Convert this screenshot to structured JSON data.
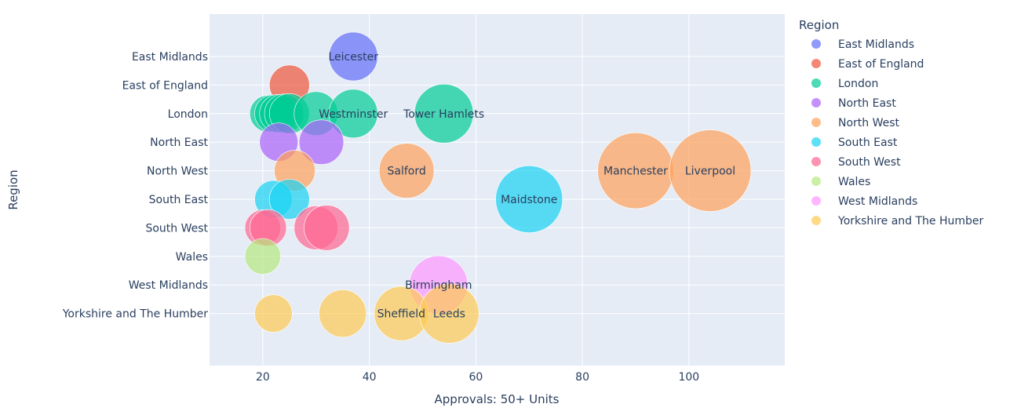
{
  "chart_data": {
    "type": "scatter",
    "xlabel": "Approvals: 50+ Units",
    "ylabel": "Region",
    "xlim": [
      10,
      118
    ],
    "x_ticks": [
      20,
      40,
      60,
      80,
      100
    ],
    "legend_title": "Region",
    "legend_position": "right",
    "grid": true,
    "categories": [
      "East Midlands",
      "East of England",
      "London",
      "North East",
      "North West",
      "South East",
      "South West",
      "Wales",
      "West Midlands",
      "Yorkshire and The Humber"
    ],
    "colors": {
      "East Midlands": "#636efa",
      "East of England": "#EF553B",
      "London": "#00cc96",
      "North East": "#ab63fa",
      "North West": "#FFA15A",
      "South East": "#19d3f3",
      "South West": "#FF6692",
      "Wales": "#B6E880",
      "West Midlands": "#FF97FF",
      "Yorkshire and The Humber": "#FECB52"
    },
    "series": [
      {
        "name": "East Midlands",
        "points": [
          {
            "x": 37,
            "size": 37,
            "label": "Leicester"
          }
        ]
      },
      {
        "name": "East of England",
        "points": [
          {
            "x": 25,
            "size": 25,
            "label": ""
          }
        ]
      },
      {
        "name": "London",
        "points": [
          {
            "x": 21,
            "size": 21,
            "label": ""
          },
          {
            "x": 22,
            "size": 22,
            "label": ""
          },
          {
            "x": 23,
            "size": 23,
            "label": ""
          },
          {
            "x": 24,
            "size": 24,
            "label": ""
          },
          {
            "x": 25,
            "size": 25,
            "label": ""
          },
          {
            "x": 30,
            "size": 30,
            "label": ""
          },
          {
            "x": 37,
            "size": 37,
            "label": "Westminster"
          },
          {
            "x": 54,
            "size": 54,
            "label": "Tower Hamlets"
          }
        ]
      },
      {
        "name": "North East",
        "points": [
          {
            "x": 23,
            "size": 23,
            "label": ""
          },
          {
            "x": 31,
            "size": 31,
            "label": ""
          }
        ]
      },
      {
        "name": "North West",
        "points": [
          {
            "x": 26,
            "size": 26,
            "label": ""
          },
          {
            "x": 47,
            "size": 47,
            "label": "Salford"
          },
          {
            "x": 90,
            "size": 90,
            "label": "Manchester"
          },
          {
            "x": 104,
            "size": 104,
            "label": "Liverpool"
          }
        ]
      },
      {
        "name": "South East",
        "points": [
          {
            "x": 22,
            "size": 22,
            "label": ""
          },
          {
            "x": 25,
            "size": 25,
            "label": ""
          },
          {
            "x": 70,
            "size": 70,
            "label": "Maidstone"
          }
        ]
      },
      {
        "name": "South West",
        "points": [
          {
            "x": 20,
            "size": 20,
            "label": ""
          },
          {
            "x": 21,
            "size": 21,
            "label": ""
          },
          {
            "x": 30,
            "size": 30,
            "label": ""
          },
          {
            "x": 32,
            "size": 32,
            "label": ""
          }
        ]
      },
      {
        "name": "Wales",
        "points": [
          {
            "x": 20,
            "size": 20,
            "label": ""
          }
        ]
      },
      {
        "name": "West Midlands",
        "points": [
          {
            "x": 53,
            "size": 53,
            "label": "Birmingham"
          }
        ]
      },
      {
        "name": "Yorkshire and The Humber",
        "points": [
          {
            "x": 22,
            "size": 22,
            "label": ""
          },
          {
            "x": 35,
            "size": 35,
            "label": ""
          },
          {
            "x": 46,
            "size": 46,
            "label": "Sheffield"
          },
          {
            "x": 55,
            "size": 55,
            "label": "Leeds"
          }
        ]
      }
    ]
  }
}
